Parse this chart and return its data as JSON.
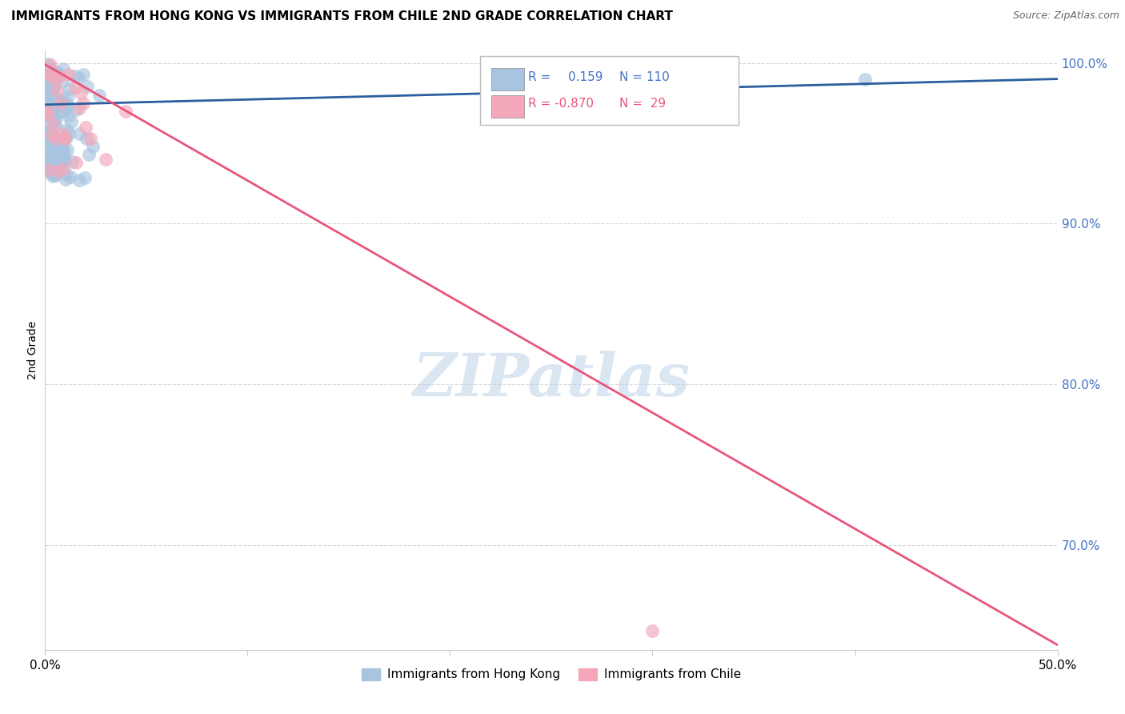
{
  "title": "IMMIGRANTS FROM HONG KONG VS IMMIGRANTS FROM CHILE 2ND GRADE CORRELATION CHART",
  "source": "Source: ZipAtlas.com",
  "ylabel": "2nd Grade",
  "xlim": [
    0.0,
    0.5
  ],
  "ylim": [
    0.635,
    1.008
  ],
  "yticks": [
    0.7,
    0.8,
    0.9,
    1.0
  ],
  "ytick_labels": [
    "70.0%",
    "80.0%",
    "90.0%",
    "100.0%"
  ],
  "xticks": [
    0.0,
    0.1,
    0.2,
    0.3,
    0.4,
    0.5
  ],
  "xtick_labels": [
    "0.0%",
    "",
    "",
    "",
    "",
    "50.0%"
  ],
  "hk_R": 0.159,
  "hk_N": 110,
  "chile_R": -0.87,
  "chile_N": 29,
  "hk_color": "#a8c4e0",
  "chile_color": "#f4a7b9",
  "hk_line_color": "#2c5f9e",
  "chile_line_color": "#e8567a",
  "legend_label_hk": "Immigrants from Hong Kong",
  "legend_label_chile": "Immigrants from Chile",
  "watermark": "ZIPatlas",
  "background_color": "#ffffff",
  "grid_color": "#cccccc",
  "hk_trend_x": [
    0.0,
    0.5
  ],
  "hk_trend_y": [
    0.974,
    0.99
  ],
  "chile_trend_x": [
    0.0,
    0.5
  ],
  "chile_trend_y": [
    0.999,
    0.638
  ]
}
